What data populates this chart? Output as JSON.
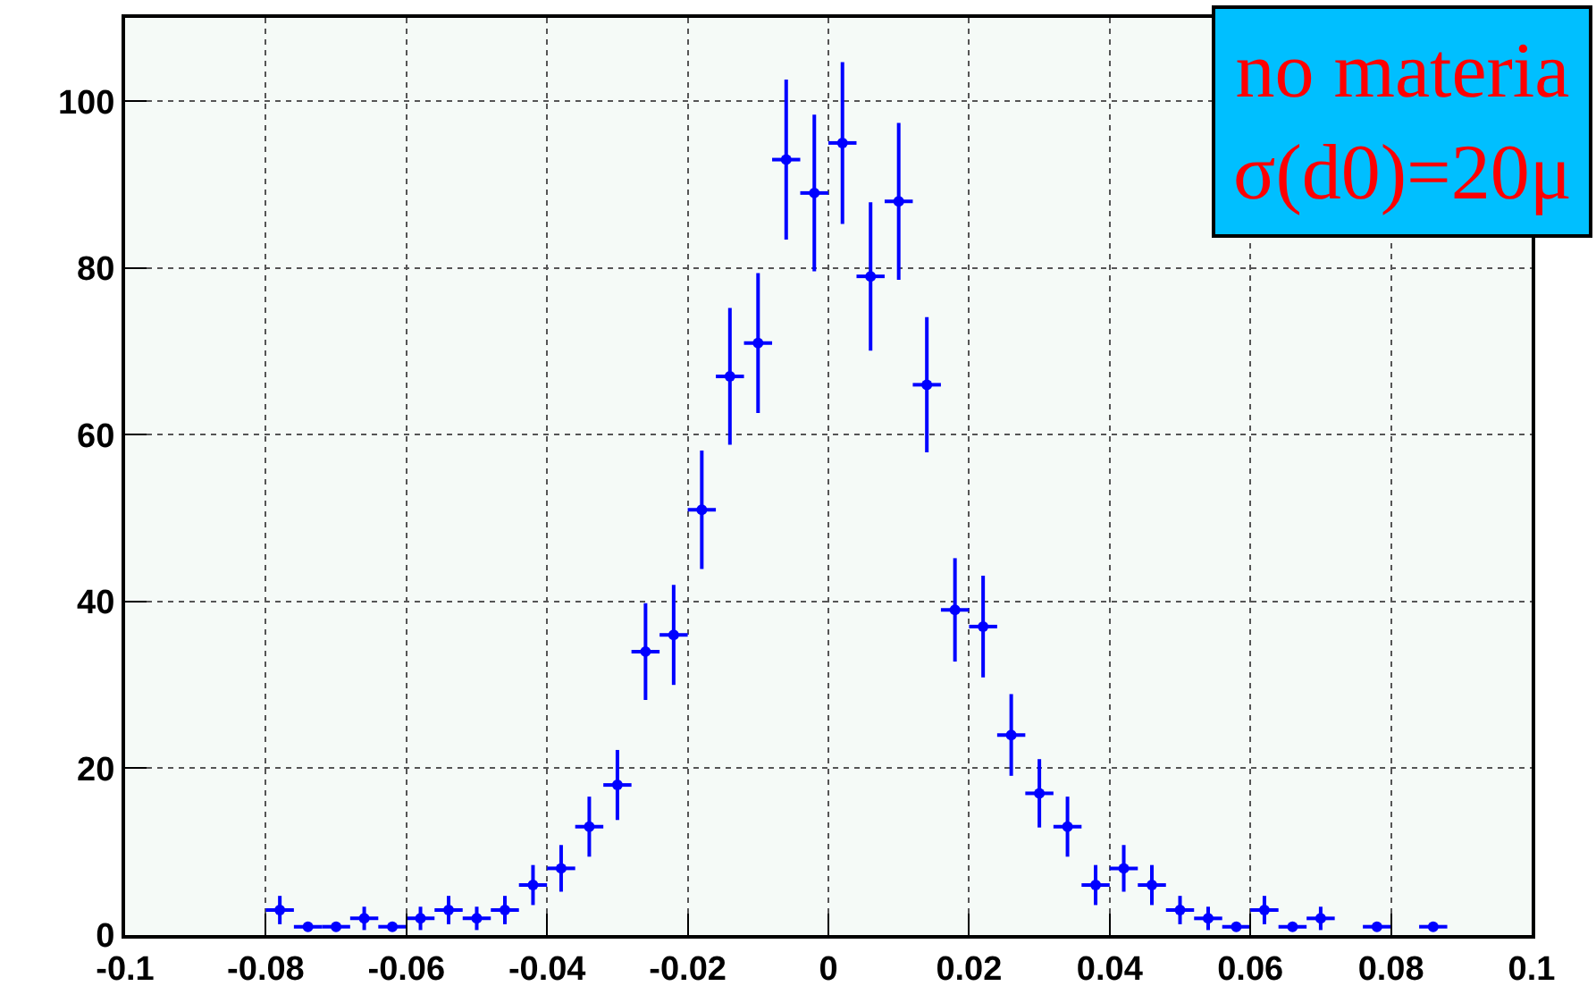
{
  "chart_data": {
    "type": "scatter",
    "x": [
      -0.078,
      -0.074,
      -0.07,
      -0.066,
      -0.062,
      -0.058,
      -0.054,
      -0.05,
      -0.046,
      -0.042,
      -0.038,
      -0.034,
      -0.03,
      -0.026,
      -0.022,
      -0.018,
      -0.014,
      -0.01,
      -0.006,
      -0.002,
      0.002,
      0.006,
      0.01,
      0.014,
      0.018,
      0.022,
      0.026,
      0.03,
      0.034,
      0.038,
      0.042,
      0.046,
      0.05,
      0.054,
      0.058,
      0.062,
      0.066,
      0.07,
      0.078,
      0.086
    ],
    "series": [
      {
        "color": "#0000ff",
        "values": [
          3,
          1,
          1,
          2,
          1,
          2,
          3,
          2,
          3,
          6,
          8,
          13,
          18,
          34,
          36,
          51,
          67,
          71,
          93,
          89,
          95,
          79,
          88,
          66,
          39,
          37,
          24,
          17,
          13,
          6,
          8,
          6,
          3,
          2,
          1,
          3,
          1,
          2,
          1,
          1
        ],
        "errors": [
          1.7,
          null,
          null,
          1.4,
          null,
          1.4,
          1.7,
          1.4,
          1.7,
          2.4,
          2.8,
          3.6,
          4.2,
          5.8,
          6,
          7.1,
          8.2,
          8.4,
          9.6,
          9.4,
          9.7,
          8.9,
          9.4,
          8.1,
          6.2,
          6.1,
          4.9,
          4.1,
          3.6,
          2.4,
          2.8,
          2.4,
          1.7,
          1.4,
          null,
          1.7,
          null,
          1.4,
          null,
          null
        ],
        "xerrors": [
          0.002,
          0.002,
          0.002,
          0.002,
          0.002,
          0.002,
          0.002,
          0.002,
          0.002,
          0.002,
          0.002,
          0.002,
          0.002,
          0.002,
          0.002,
          0.002,
          0.002,
          0.002,
          0.002,
          0.002,
          0.002,
          0.002,
          0.002,
          0.002,
          0.002,
          0.002,
          0.002,
          0.002,
          0.002,
          0.002,
          0.002,
          0.002,
          0.002,
          0.002,
          0.002,
          0.002,
          0.002,
          0.002,
          0.002,
          0.002
        ]
      }
    ],
    "xlim": [
      -0.1,
      0.1
    ],
    "xticks": [
      {
        "value": -0.1,
        "label": "-0.1"
      },
      -0.08,
      -0.06,
      -0.04,
      -0.02,
      0,
      0.02,
      0.04,
      0.06,
      0.08,
      {
        "value": 0.1,
        "label": "0.1"
      }
    ],
    "ylim": [
      0,
      110
    ],
    "yticks": [
      0,
      20,
      40,
      60,
      80,
      100
    ],
    "grid": true,
    "marker": "circle",
    "annotations": [
      "no materia\nσ(d0)=20μ"
    ]
  }
}
